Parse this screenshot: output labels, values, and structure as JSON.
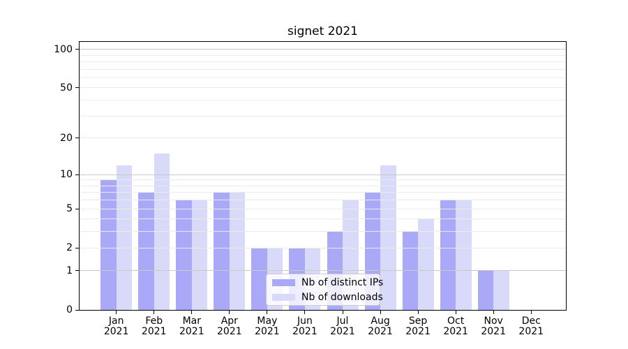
{
  "chart_data": {
    "type": "bar",
    "title": "signet 2021",
    "x_tick_months": [
      "Jan",
      "Feb",
      "Mar",
      "Apr",
      "May",
      "Jun",
      "Jul",
      "Aug",
      "Sep",
      "Oct",
      "Nov",
      "Dec"
    ],
    "x_tick_year": "2021",
    "series": [
      {
        "name": "Nb of distinct IPs",
        "color": "#a9a9f8",
        "values": [
          9,
          7,
          6,
          7,
          2,
          2,
          3,
          7,
          3,
          6,
          1,
          0
        ]
      },
      {
        "name": "Nb of downloads",
        "color": "#d9d9fa",
        "values": [
          12,
          15,
          6,
          7,
          2,
          2,
          6,
          12,
          4,
          6,
          1,
          0
        ]
      }
    ],
    "y_scale": "log1p",
    "y_ticks": [
      0,
      1,
      2,
      5,
      10,
      20,
      50,
      100
    ],
    "y_major_gridlines": [
      1,
      10,
      100
    ],
    "y_minor_gridlines": [
      2,
      3,
      4,
      5,
      6,
      7,
      8,
      9,
      20,
      30,
      40,
      50,
      60,
      70,
      80,
      90
    ],
    "ylim": [
      0,
      114.3
    ],
    "legend_position": "lower center",
    "grid": true,
    "colors": {
      "major_grid": "#c9c9c9",
      "minor_grid": "#ebebeb",
      "spine": "#000000",
      "background": "#ffffff"
    }
  }
}
